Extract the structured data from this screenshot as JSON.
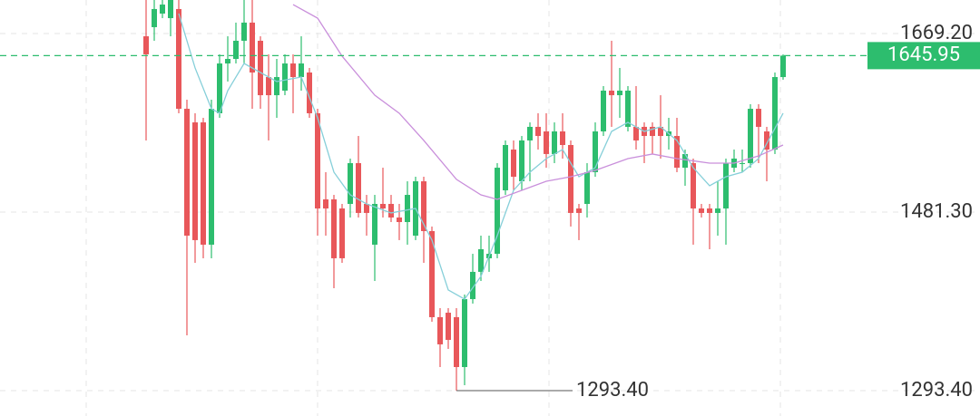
{
  "chart_data": {
    "type": "candlestick",
    "up_color": "#2dbd6e",
    "down_color": "#e8575a",
    "open": [
      1666.3,
      1675.9,
      1690.2,
      1685.4,
      1695.0,
      1590.0,
      1575.7,
      1575.7,
      1447.0,
      1585.3,
      1637.7,
      1642.5,
      1661.6,
      1680.7,
      1661.6,
      1623.4,
      1604.3,
      1609.1,
      1637.7,
      1623.4,
      1628.2,
      1585.3,
      1494.7,
      1494.7,
      1485.1,
      1489.9,
      1532.8,
      1489.9,
      1447.0,
      1489.9,
      1489.9,
      1475.6,
      1470.8,
      1456.5,
      1513.7,
      1461.3,
      1370.7,
      1375.4,
      1370.7,
      1318.2,
      1389.7,
      1418.4,
      1432.7,
      1437.4,
      1504.2,
      1547.1,
      1513.7,
      1556.7,
      1571.0,
      1566.2,
      1542.4,
      1566.2,
      1551.9,
      1485.1,
      1489.9,
      1523.3,
      1566.2,
      1609.1,
      1604.3,
      1571.0,
      1571.0,
      1571.0,
      1571.0,
      1571.0,
      1561.4,
      1561.4,
      1528.0,
      1532.8,
      1485.1,
      1485.1,
      1480.4,
      1485.1,
      1528.0,
      1532.8,
      1532.8,
      1590.0,
      1566.2,
      1547.1,
      1623.4
    ],
    "high": [
      1704.5,
      1704.5,
      1704.5,
      1704.5,
      1704.5,
      1599.6,
      1585.3,
      1580.5,
      1599.6,
      1647.3,
      1666.3,
      1680.7,
      1704.5,
      1704.5,
      1666.3,
      1647.3,
      1642.5,
      1647.3,
      1647.3,
      1666.3,
      1633.0,
      1590.0,
      1523.3,
      1499.4,
      1489.9,
      1537.6,
      1561.4,
      1499.4,
      1499.4,
      1528.0,
      1499.4,
      1489.9,
      1513.7,
      1518.5,
      1518.5,
      1466.1,
      1380.2,
      1380.2,
      1380.2,
      1394.5,
      1437.4,
      1456.5,
      1456.5,
      1532.8,
      1556.7,
      1556.7,
      1561.4,
      1575.7,
      1585.3,
      1585.3,
      1575.7,
      1585.3,
      1556.7,
      1489.9,
      1532.8,
      1575.7,
      1613.9,
      1661.6,
      1633.0,
      1613.9,
      1613.9,
      1575.7,
      1575.7,
      1604.3,
      1580.5,
      1580.5,
      1547.1,
      1537.6,
      1489.9,
      1489.9,
      1513.7,
      1537.6,
      1547.1,
      1547.1,
      1594.8,
      1594.8,
      1571.0,
      1628.2,
      1647.3
    ],
    "low": [
      1556.7,
      1661.6,
      1685.4,
      1666.3,
      1585.3,
      1351.6,
      1427.9,
      1432.7,
      1432.7,
      1580.5,
      1618.7,
      1637.7,
      1637.7,
      1590.0,
      1590.0,
      1556.7,
      1580.5,
      1604.3,
      1585.3,
      1609.1,
      1580.5,
      1456.5,
      1456.5,
      1401.2,
      1427.9,
      1475.6,
      1475.6,
      1456.5,
      1408.8,
      1475.6,
      1470.8,
      1451.8,
      1447.0,
      1451.8,
      1427.9,
      1365.9,
      1318.2,
      1337.3,
      1293.4,
      1299.1,
      1385.0,
      1408.8,
      1418.4,
      1432.7,
      1499.4,
      1504.2,
      1504.2,
      1513.7,
      1547.1,
      1528.0,
      1532.8,
      1537.6,
      1466.1,
      1451.8,
      1475.6,
      1518.5,
      1561.4,
      1571.0,
      1580.5,
      1566.2,
      1547.1,
      1532.8,
      1542.4,
      1537.6,
      1547.1,
      1523.3,
      1509.0,
      1447.0,
      1475.6,
      1442.2,
      1456.5,
      1447.0,
      1523.3,
      1523.3,
      1528.0,
      1532.8,
      1513.7,
      1542.4,
      1620.6
    ],
    "close": [
      1647.3,
      1695.0,
      1699.7,
      1704.5,
      1590.0,
      1456.5,
      1451.8,
      1447.0,
      1590.0,
      1637.7,
      1642.5,
      1661.6,
      1680.7,
      1628.2,
      1604.3,
      1604.3,
      1623.4,
      1637.7,
      1623.4,
      1637.7,
      1585.3,
      1485.1,
      1485.1,
      1432.7,
      1432.7,
      1532.8,
      1480.4,
      1480.4,
      1489.9,
      1485.1,
      1475.6,
      1470.8,
      1499.4,
      1513.7,
      1461.3,
      1370.7,
      1342.1,
      1346.8,
      1318.2,
      1389.7,
      1418.4,
      1442.2,
      1437.4,
      1528.0,
      1551.9,
      1518.5,
      1556.7,
      1571.0,
      1561.4,
      1542.4,
      1566.2,
      1551.9,
      1480.4,
      1480.4,
      1523.3,
      1566.2,
      1609.1,
      1604.3,
      1609.1,
      1609.1,
      1556.7,
      1561.4,
      1561.4,
      1561.4,
      1566.2,
      1528.0,
      1542.4,
      1485.1,
      1480.4,
      1480.4,
      1485.1,
      1532.8,
      1537.6,
      1532.8,
      1590.0,
      1571.0,
      1547.1,
      1623.4,
      1645.95
    ],
    "lines": [
      {
        "color": "#86cfd9",
        "x": [
          4,
          6,
          8,
          9,
          10,
          12,
          14,
          16,
          19,
          21,
          23,
          25,
          27,
          30,
          33,
          35,
          37,
          39,
          41,
          43,
          45,
          47,
          49,
          51,
          53,
          55,
          57,
          59,
          61,
          63,
          65,
          67,
          69,
          71,
          73,
          75,
          78
        ],
        "values": [
          1690.2,
          1633.0,
          1590.0,
          1585.3,
          1609.1,
          1637.7,
          1628.2,
          1618.7,
          1623.4,
          1580.5,
          1523.3,
          1499.4,
          1489.9,
          1480.4,
          1485.1,
          1451.8,
          1399.3,
          1389.7,
          1413.6,
          1456.5,
          1504.2,
          1523.3,
          1537.6,
          1547.1,
          1518.5,
          1528.0,
          1566.2,
          1575.7,
          1566.2,
          1571.0,
          1556.7,
          1528.0,
          1509.0,
          1518.5,
          1523.3,
          1537.6,
          1585.3
        ]
      },
      {
        "color": "#c98fdb",
        "x": [
          18,
          21,
          24,
          28,
          31,
          34,
          38,
          41,
          43,
          46,
          49,
          52,
          55,
          59,
          62,
          65,
          69,
          72,
          75,
          78
        ],
        "values": [
          1699.7,
          1685.4,
          1645.4,
          1604.3,
          1585.3,
          1556.7,
          1515.7,
          1499.4,
          1494.7,
          1504.2,
          1513.7,
          1518.5,
          1525.2,
          1537.6,
          1542.4,
          1537.6,
          1532.8,
          1532.8,
          1540.4,
          1551.9
        ]
      }
    ],
    "ylim": [
      1266.7,
      1704.5
    ],
    "yticks": [
      {
        "value": 1669.2,
        "label": "1669.20"
      },
      {
        "value": 1481.3,
        "label": "1481.30"
      },
      {
        "value": 1293.4,
        "label": "1293.40"
      }
    ],
    "last_price": {
      "value": 1645.95,
      "label": "1645.95",
      "color": "#2dbd6e"
    },
    "min_marker": {
      "value": 1293.4,
      "label": "1293.40",
      "index": 38
    },
    "grid": true
  }
}
